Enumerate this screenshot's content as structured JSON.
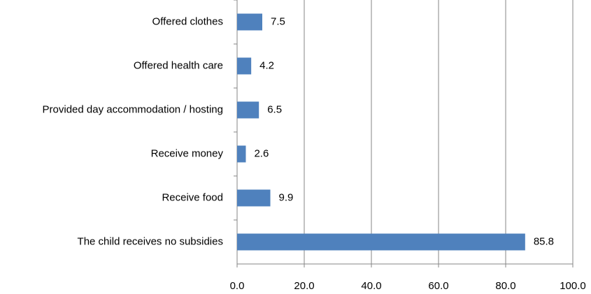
{
  "chart_data": {
    "type": "bar",
    "orientation": "horizontal",
    "categories": [
      "Offered clothes",
      "Offered health care",
      "Provided day accommodation / hosting",
      "Receive money",
      "Receive food",
      "The child receives no subsidies"
    ],
    "values": [
      7.5,
      4.2,
      6.5,
      2.6,
      9.9,
      85.8
    ],
    "color": "#4f81bd",
    "xlim": [
      0,
      100
    ],
    "xticks": [
      {
        "value": 0,
        "label": "0.0"
      },
      {
        "value": 20,
        "label": "20.0"
      },
      {
        "value": 40,
        "label": "40.0"
      },
      {
        "value": 60,
        "label": "60.0"
      },
      {
        "value": 80,
        "label": "80.0"
      },
      {
        "value": 100,
        "label": "100.0"
      }
    ],
    "grid": true
  }
}
